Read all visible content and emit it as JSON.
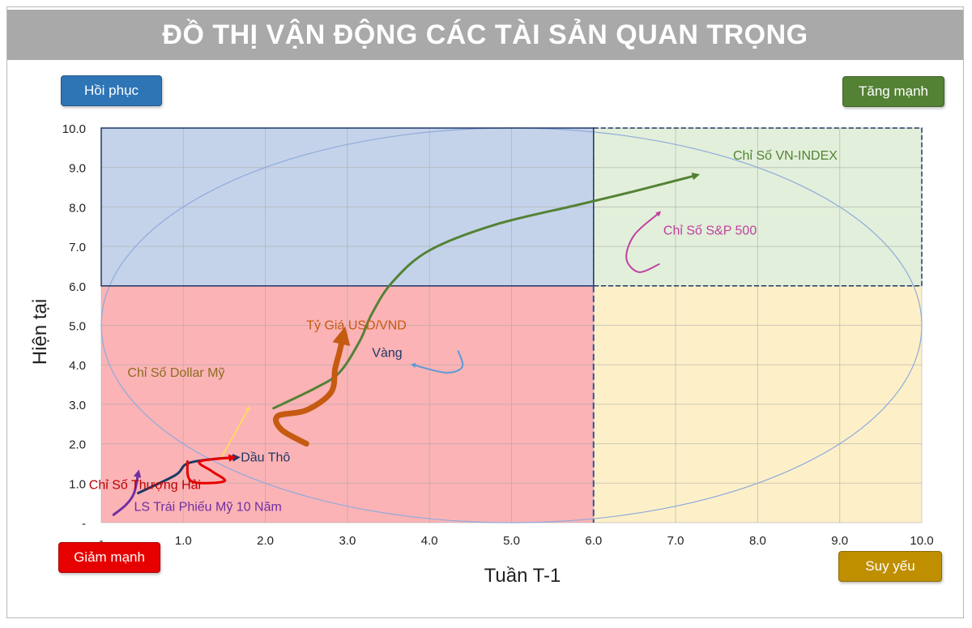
{
  "header": {
    "title": "ĐỒ THỊ VẬN ĐỘNG CÁC TÀI SẢN QUAN TRỌNG"
  },
  "quadrants": {
    "top_left": {
      "label": "Hồi phục",
      "color": "#2e75b6"
    },
    "top_right": {
      "label": "Tăng mạnh",
      "color": "#548235"
    },
    "bottom_left": {
      "label": "Giảm mạnh",
      "color": "#e60000"
    },
    "bottom_right": {
      "label": "Suy yếu",
      "color": "#bf8f00"
    }
  },
  "chart_data": {
    "type": "line",
    "xlabel": "Tuần T-1",
    "ylabel": "Hiện tại",
    "xlim": [
      0,
      10
    ],
    "ylim": [
      0,
      10
    ],
    "x_ticks": [
      "-",
      "1.0",
      "2.0",
      "3.0",
      "4.0",
      "5.0",
      "6.0",
      "7.0",
      "8.0",
      "9.0",
      "10.0"
    ],
    "y_ticks": [
      "-",
      "1.0",
      "2.0",
      "3.0",
      "4.0",
      "5.0",
      "6.0",
      "7.0",
      "8.0",
      "9.0",
      "10.0"
    ],
    "grid": true,
    "quadrant_split": {
      "x": 6.0,
      "y": 6.0
    },
    "region_colors": {
      "top_left": "#c5d3ea",
      "top_right": "#e2efda",
      "bottom_left": "#fbb3b6",
      "bottom_right": "#fdf0c8"
    },
    "series": [
      {
        "name": "Chỉ Số VN-INDEX",
        "color": "#548235",
        "width": 3,
        "points": [
          [
            2.1,
            2.9
          ],
          [
            2.6,
            3.4
          ],
          [
            2.9,
            3.8
          ],
          [
            3.15,
            4.6
          ],
          [
            3.3,
            5.3
          ],
          [
            3.55,
            6.1
          ],
          [
            4.0,
            6.9
          ],
          [
            4.8,
            7.55
          ],
          [
            5.8,
            8.05
          ],
          [
            6.5,
            8.4
          ],
          [
            7.25,
            8.8
          ]
        ]
      },
      {
        "name": "Chỉ Số S&P 500",
        "color": "#c040a0",
        "width": 2,
        "points": [
          [
            6.8,
            6.55
          ],
          [
            6.55,
            6.35
          ],
          [
            6.4,
            6.7
          ],
          [
            6.5,
            7.3
          ],
          [
            6.8,
            7.85
          ]
        ]
      },
      {
        "name": "Tỷ Giá USD/VND",
        "color": "#c55a11",
        "width": 7,
        "points": [
          [
            2.5,
            2.0
          ],
          [
            2.2,
            2.35
          ],
          [
            2.15,
            2.7
          ],
          [
            2.5,
            2.85
          ],
          [
            2.8,
            3.3
          ],
          [
            2.85,
            3.9
          ],
          [
            2.9,
            4.3
          ],
          [
            2.95,
            4.75
          ]
        ]
      },
      {
        "name": "Vàng",
        "color": "#5b9bd5",
        "width": 2,
        "points": [
          [
            4.35,
            4.35
          ],
          [
            4.4,
            3.95
          ],
          [
            4.2,
            3.8
          ],
          [
            3.8,
            4.0
          ]
        ]
      },
      {
        "name": "Chỉ Số Dollar Mỹ",
        "color": "#ffd966",
        "width": 2,
        "points": [
          [
            1.45,
            1.6
          ],
          [
            1.8,
            2.9
          ]
        ]
      },
      {
        "name": "Dầu Thô",
        "color": "#1f3864",
        "width": 3,
        "points": [
          [
            0.45,
            0.75
          ],
          [
            0.9,
            1.2
          ],
          [
            1.05,
            1.5
          ],
          [
            1.4,
            1.62
          ],
          [
            1.65,
            1.65
          ]
        ]
      },
      {
        "name": "Chỉ Số Thượng Hải",
        "color": "#e60000",
        "width": 3,
        "points": [
          [
            1.05,
            1.55
          ],
          [
            1.1,
            1.05
          ],
          [
            1.5,
            1.05
          ],
          [
            1.35,
            1.3
          ],
          [
            1.2,
            1.55
          ],
          [
            1.6,
            1.65
          ]
        ]
      },
      {
        "name": "LS Trái Phiếu Mỹ 10 Năm",
        "color": "#7030a0",
        "width": 3,
        "points": [
          [
            0.15,
            0.2
          ],
          [
            0.3,
            0.45
          ],
          [
            0.4,
            0.75
          ],
          [
            0.45,
            1.25
          ]
        ]
      }
    ],
    "labels": [
      {
        "text": "Chỉ Số VN-INDEX",
        "x": 7.7,
        "y": 9.2,
        "color": "#548235"
      },
      {
        "text": "Chỉ Số S&P 500",
        "x": 6.85,
        "y": 7.3,
        "color": "#c040a0"
      },
      {
        "text": "Tỷ Giá USD/VND",
        "x": 2.5,
        "y": 4.9,
        "color": "#c55a11"
      },
      {
        "text": "Vàng",
        "x": 3.3,
        "y": 4.2,
        "color": "#1f3864"
      },
      {
        "text": "Chỉ Số Dollar Mỹ",
        "x": 0.32,
        "y": 3.7,
        "color": "#8c6d1f"
      },
      {
        "text": "Dầu Thô",
        "x": 1.7,
        "y": 1.55,
        "color": "#1f3864"
      },
      {
        "text": "Chỉ Số Thượng Hải",
        "x": -0.15,
        "y": 0.85,
        "color": "#c00000"
      },
      {
        "text": "LS Trái Phiếu Mỹ 10 Năm",
        "x": 0.4,
        "y": 0.3,
        "color": "#7030a0"
      }
    ]
  }
}
